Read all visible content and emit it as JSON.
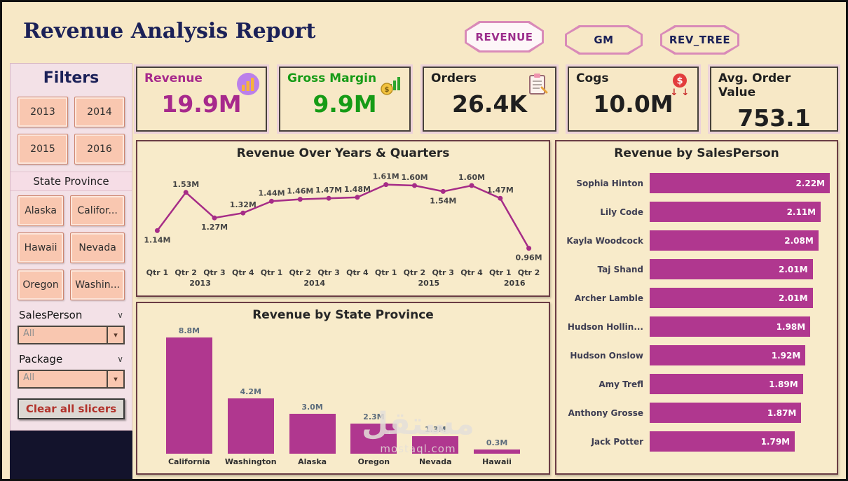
{
  "header": {
    "title": "Revenue Analysis Report",
    "nav": [
      {
        "label": "REVENUE"
      },
      {
        "label": "GM"
      },
      {
        "label": "REV_TREE"
      }
    ]
  },
  "icons": {
    "chevron_down": "▾",
    "chevron_small": "∨"
  },
  "filters": {
    "title": "Filters",
    "years": [
      "2013",
      "2014",
      "2015",
      "2016"
    ],
    "state_label": "State Province",
    "states": [
      "Alaska",
      "Califor...",
      "Hawaii",
      "Nevada",
      "Oregon",
      "Washin..."
    ],
    "salesperson_label": "SalesPerson",
    "salesperson_value": "All",
    "package_label": "Package",
    "package_value": "All",
    "clear_button": "Clear all slicers"
  },
  "kpis": [
    {
      "label": "Revenue",
      "value": "19.9M",
      "color": "#a7298c",
      "icon": "revenue-bars-icon"
    },
    {
      "label": "Gross Margin",
      "value": "9.9M",
      "color": "#169b16",
      "icon": "coins-icon"
    },
    {
      "label": "Orders",
      "value": "26.4K",
      "color": "#1f1f1f",
      "icon": "clipboard-icon"
    },
    {
      "label": "Cogs",
      "value": "10.0M",
      "color": "#1f1f1f",
      "icon": "cost-down-icon"
    },
    {
      "label": "Avg. Order Value",
      "value": "753.1",
      "color": "#1f1f1f",
      "icon": ""
    }
  ],
  "chart_data": [
    {
      "type": "line",
      "title": "Revenue Over Years & Quarters",
      "x": [
        "Qtr 1",
        "Qtr 2",
        "Qtr 3",
        "Qtr 4",
        "Qtr 1",
        "Qtr 2",
        "Qtr 3",
        "Qtr 4",
        "Qtr 1",
        "Qtr 2",
        "Qtr 3",
        "Qtr 4",
        "Qtr 1",
        "Qtr 2"
      ],
      "year_groups": [
        {
          "label": "2013",
          "count": 4
        },
        {
          "label": "2014",
          "count": 4
        },
        {
          "label": "2015",
          "count": 4
        },
        {
          "label": "2016",
          "count": 2
        }
      ],
      "values": [
        1.14,
        1.53,
        1.27,
        1.32,
        1.44,
        1.46,
        1.47,
        1.48,
        1.61,
        1.6,
        1.54,
        1.6,
        1.47,
        0.96
      ],
      "labels": [
        "1.14M",
        "1.53M",
        "1.27M",
        "1.32M",
        "1.44M",
        "1.46M",
        "1.47M",
        "1.48M",
        "1.61M",
        "1.60M",
        "1.54M",
        "1.60M",
        "1.47M",
        "0.96M"
      ],
      "line_color": "#a62c87",
      "ylim": [
        0.9,
        1.7
      ],
      "grid": false,
      "legend": false
    },
    {
      "type": "bar",
      "title": "Revenue by State Province",
      "categories": [
        "California",
        "Washington",
        "Alaska",
        "Oregon",
        "Nevada",
        "Hawaii"
      ],
      "values": [
        8.8,
        4.2,
        3.0,
        2.3,
        1.3,
        0.3
      ],
      "labels": [
        "8.8M",
        "4.2M",
        "3.0M",
        "2.3M",
        "1.3M",
        "0.3M"
      ],
      "bar_color": "#b0378f",
      "ylim": [
        0,
        9
      ],
      "grid": false,
      "legend": false
    },
    {
      "type": "hbar",
      "title": "Revenue by SalesPerson",
      "categories": [
        "Sophia Hinton",
        "Lily Code",
        "Kayla Woodcock",
        "Taj Shand",
        "Archer Lamble",
        "Hudson Hollin...",
        "Hudson Onslow",
        "Amy Trefl",
        "Anthony Grosse",
        "Jack Potter"
      ],
      "values": [
        2.22,
        2.11,
        2.08,
        2.01,
        2.01,
        1.98,
        1.92,
        1.89,
        1.87,
        1.79
      ],
      "labels": [
        "2.22M",
        "2.11M",
        "2.08M",
        "2.01M",
        "2.01M",
        "1.98M",
        "1.92M",
        "1.89M",
        "1.87M",
        "1.79M"
      ],
      "bar_color": "#b0378f",
      "xlim": [
        0,
        2.22
      ],
      "grid": false,
      "legend": false
    }
  ],
  "watermark": {
    "arabic": "مستقل",
    "domain": "mostaql.com"
  }
}
